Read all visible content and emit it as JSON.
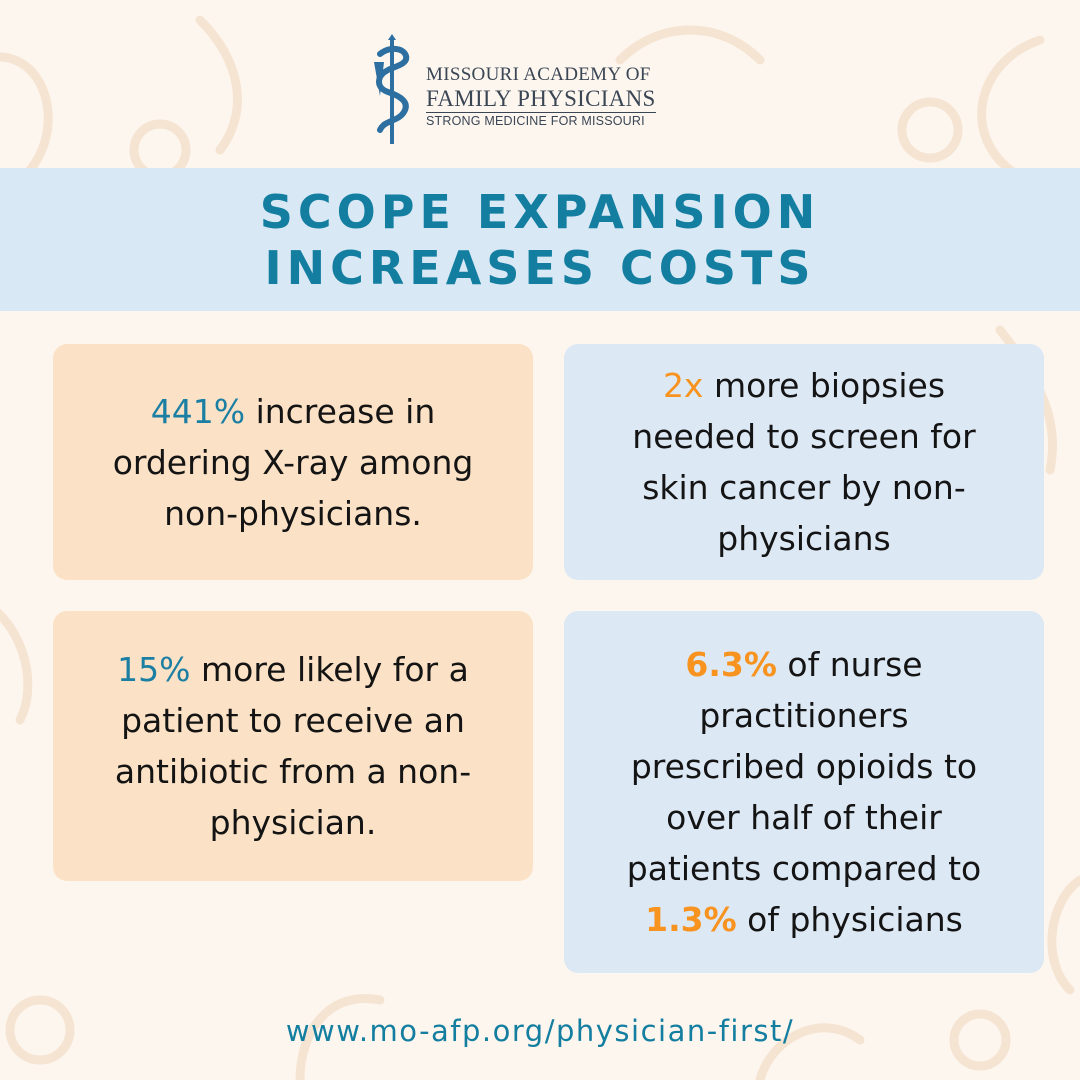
{
  "colors": {
    "background": "#fdf6ef",
    "banner_bg": "#d9e8f5",
    "title": "#137ea0",
    "card_peach": "#fbe2c6",
    "card_blue": "#dde8f5",
    "accent_teal": "#1b7fa3",
    "accent_orange": "#f7931e",
    "logo": "#3a4654",
    "logo_mark": "#2c6fa0"
  },
  "logo": {
    "icon": "caduceus-icon",
    "line1": "MISSOURI ACADEMY OF",
    "line2": "FAMILY PHYSICIANS",
    "line3": "STRONG MEDICINE FOR MISSOURI"
  },
  "banner": {
    "line1": "SCOPE EXPANSION",
    "line2": "INCREASES COSTS"
  },
  "cards": [
    {
      "highlight": "441%",
      "l1": " increase in",
      "l2": "ordering X-ray among",
      "l3": "non-physicians."
    },
    {
      "highlight": "2x",
      "l1": " more biopsies",
      "l2": "needed to screen for",
      "l3": "skin cancer by non-",
      "l4": "physicians"
    },
    {
      "highlight": "15%",
      "l1": " more likely for a",
      "l2": "patient to receive an",
      "l3": "antibiotic from a non-",
      "l4": "physician."
    },
    {
      "highlight": "6.3%",
      "l1": " of nurse",
      "l2": "practitioners",
      "l3": "prescribed opioids to",
      "l4": "over half of their",
      "l5": "patients compared to",
      "highlight2": "1.3%",
      "l6": " of physicians"
    }
  ],
  "footer": {
    "url": "www.mo-afp.org/physician-first/"
  }
}
